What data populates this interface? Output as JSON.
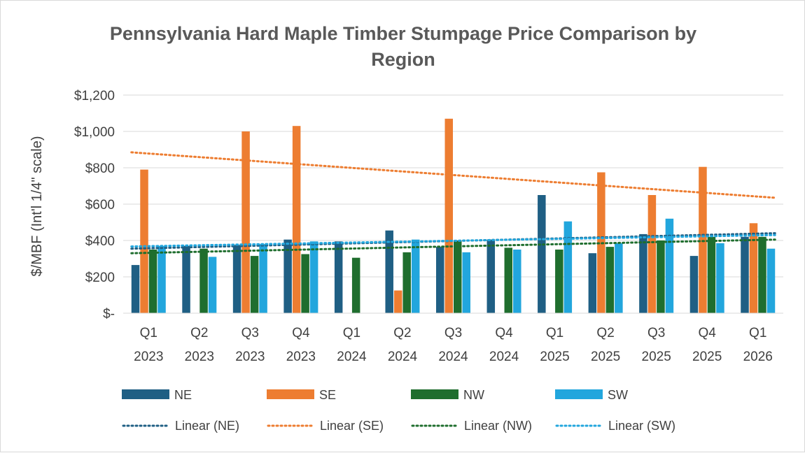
{
  "chart_data": {
    "type": "bar",
    "title_lines": [
      "Pennsylvania Hard Maple Timber Stumpage Price Comparison by",
      "Region"
    ],
    "ylabel": "$/MBF (Int'l 1/4\" scale)",
    "ylim": [
      0,
      1200
    ],
    "y_ticks": [
      {
        "value": 0,
        "label": "$-"
      },
      {
        "value": 200,
        "label": "$200"
      },
      {
        "value": 400,
        "label": "$400"
      },
      {
        "value": 600,
        "label": "$600"
      },
      {
        "value": 800,
        "label": "$800"
      },
      {
        "value": 1000,
        "label": "$1,000"
      },
      {
        "value": 1200,
        "label": "$1,200"
      }
    ],
    "grid": true,
    "legend_position": "bottom",
    "categories": [
      [
        "Q1",
        "2023"
      ],
      [
        "Q2",
        "2023"
      ],
      [
        "Q3",
        "2023"
      ],
      [
        "Q4",
        "2023"
      ],
      [
        "Q1",
        "2024"
      ],
      [
        "Q2",
        "2024"
      ],
      [
        "Q3",
        "2024"
      ],
      [
        "Q4",
        "2024"
      ],
      [
        "Q1",
        "2025"
      ],
      [
        "Q2",
        "2025"
      ],
      [
        "Q3",
        "2025"
      ],
      [
        "Q4",
        "2025"
      ],
      [
        "Q1",
        "2026"
      ]
    ],
    "series": [
      {
        "name": "NE",
        "color": "#1f5f84",
        "values": [
          265,
          370,
          375,
          405,
          395,
          455,
          365,
          405,
          650,
          330,
          435,
          315,
          420
        ]
      },
      {
        "name": "SE",
        "color": "#ed7d31",
        "values": [
          790,
          null,
          1000,
          1030,
          null,
          125,
          1070,
          null,
          null,
          775,
          650,
          805,
          495
        ]
      },
      {
        "name": "NW",
        "color": "#1f6e2e",
        "values": [
          350,
          355,
          315,
          325,
          305,
          335,
          400,
          360,
          350,
          365,
          400,
          420,
          420
        ]
      },
      {
        "name": "SW",
        "color": "#22a6dd",
        "values": [
          370,
          310,
          380,
          395,
          null,
          405,
          335,
          350,
          505,
          385,
          520,
          385,
          355
        ]
      }
    ],
    "trendlines": [
      {
        "name": "Linear (NE)",
        "color": "#1f5f84",
        "start": 355,
        "end": 440
      },
      {
        "name": "Linear (SE)",
        "color": "#ed7d31",
        "start": 885,
        "end": 635
      },
      {
        "name": "Linear (NW)",
        "color": "#1f6e2e",
        "start": 330,
        "end": 405
      },
      {
        "name": "Linear (SW)",
        "color": "#22a6dd",
        "start": 367,
        "end": 430
      }
    ]
  }
}
